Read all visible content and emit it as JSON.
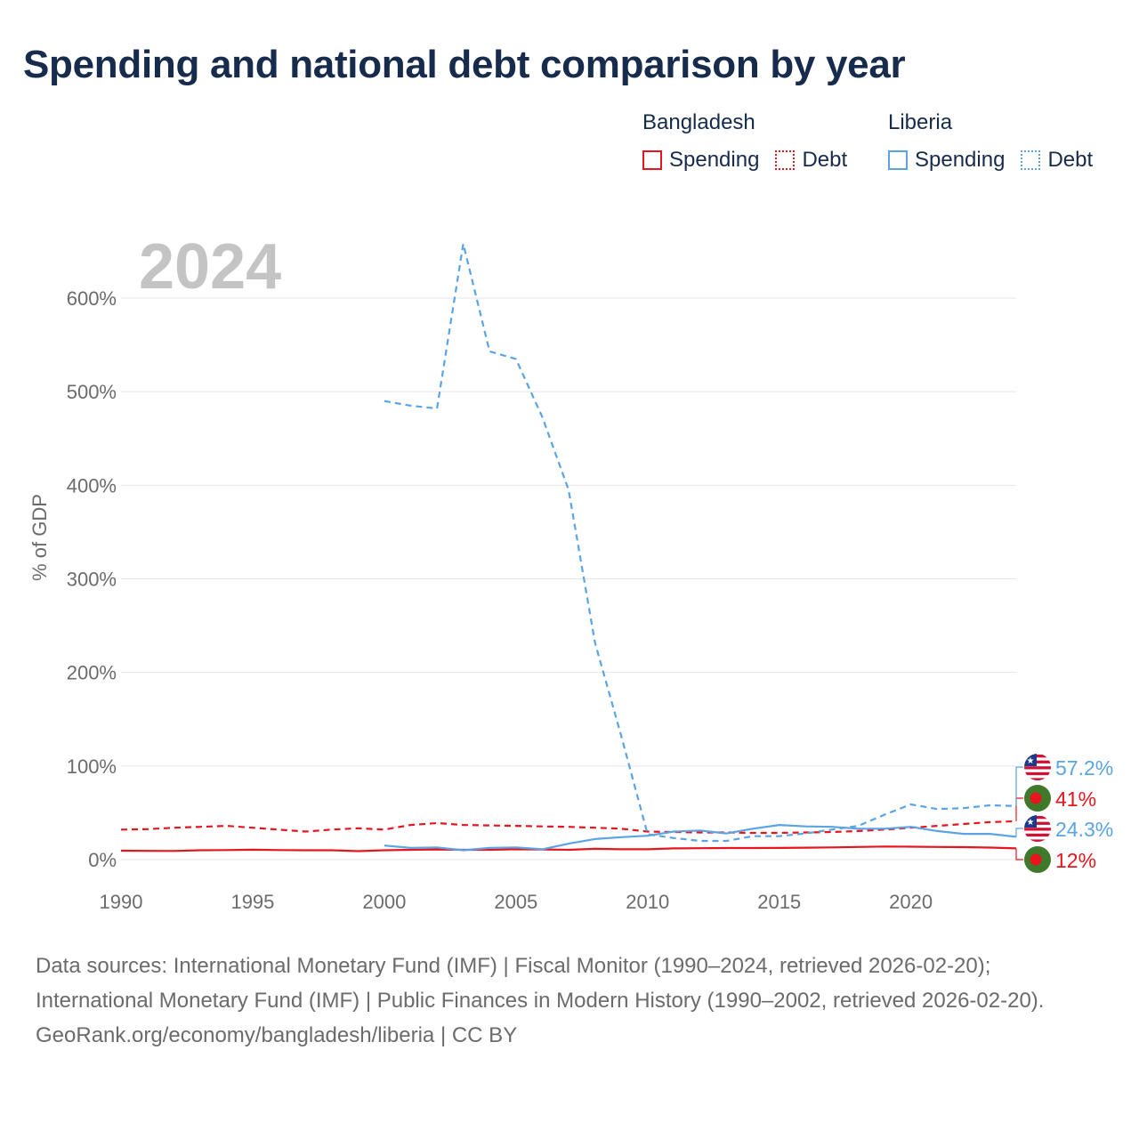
{
  "title": "Spending and national debt comparison by year",
  "legend": {
    "groups": [
      {
        "name": "Bangladesh",
        "spending_label": "Spending",
        "debt_label": "Debt"
      },
      {
        "name": "Liberia",
        "spending_label": "Spending",
        "debt_label": "Debt"
      }
    ]
  },
  "colors": {
    "bangladesh": "#e8141e",
    "liberia": "#5aa4e6",
    "year_watermark": "#c4c4c4",
    "grid": "#e6e6e6",
    "axis_text": "#6b6b6b"
  },
  "chart_data": {
    "type": "line",
    "title": "Spending and national debt comparison by year",
    "year_label": "2024",
    "ylabel": "% of GDP",
    "xlabel": "",
    "xlim": [
      1990,
      2024
    ],
    "ylim": [
      0,
      600
    ],
    "x_ticks": [
      1990,
      1995,
      2000,
      2005,
      2010,
      2015,
      2020
    ],
    "y_ticks": [
      0,
      100,
      200,
      300,
      400,
      500,
      600
    ],
    "y_tick_labels": [
      "0%",
      "100%",
      "200%",
      "300%",
      "400%",
      "500%",
      "600%"
    ],
    "series": [
      {
        "name": "Bangladesh Spending",
        "country": "Bangladesh",
        "metric": "Spending",
        "color": "#e8141e",
        "dash": false,
        "x": [
          1990,
          1991,
          1992,
          1993,
          1994,
          1995,
          1996,
          1997,
          1998,
          1999,
          2000,
          2001,
          2002,
          2003,
          2004,
          2005,
          2006,
          2007,
          2008,
          2009,
          2010,
          2011,
          2012,
          2013,
          2014,
          2015,
          2016,
          2017,
          2018,
          2019,
          2020,
          2021,
          2022,
          2023,
          2024
        ],
        "values": [
          9.5,
          9.3,
          9.2,
          10,
          10.2,
          10.6,
          10.2,
          10,
          10,
          9,
          10,
          10.5,
          10.8,
          10.5,
          10.5,
          11,
          10.8,
          10.5,
          11.5,
          11,
          11,
          12,
          12.2,
          12.4,
          12.4,
          12.5,
          12.7,
          13,
          13.5,
          14,
          13.8,
          13.5,
          13.3,
          12.8,
          12
        ],
        "end_label": "12%"
      },
      {
        "name": "Bangladesh Debt",
        "country": "Bangladesh",
        "metric": "Debt",
        "color": "#e8141e",
        "dash": true,
        "x": [
          1990,
          1991,
          1992,
          1993,
          1994,
          1995,
          1996,
          1997,
          1998,
          1999,
          2000,
          2001,
          2002,
          2003,
          2004,
          2005,
          2006,
          2007,
          2008,
          2009,
          2010,
          2011,
          2012,
          2013,
          2014,
          2015,
          2016,
          2017,
          2018,
          2019,
          2020,
          2021,
          2022,
          2023,
          2024
        ],
        "values": [
          32,
          32.5,
          34,
          35,
          36,
          34,
          32,
          30,
          32,
          33.5,
          32,
          37,
          39,
          37,
          36.5,
          36,
          35.5,
          35,
          34,
          33,
          30,
          29.5,
          29,
          29,
          28.5,
          28.5,
          29,
          29.5,
          30.5,
          32,
          34,
          36,
          38,
          40,
          41
        ],
        "end_label": "41%"
      },
      {
        "name": "Liberia Spending",
        "country": "Liberia",
        "metric": "Spending",
        "color": "#5aa4e6",
        "dash": false,
        "x": [
          2000,
          2001,
          2002,
          2003,
          2004,
          2005,
          2006,
          2007,
          2008,
          2009,
          2010,
          2011,
          2012,
          2013,
          2014,
          2015,
          2016,
          2017,
          2018,
          2019,
          2020,
          2021,
          2022,
          2023,
          2024
        ],
        "values": [
          15,
          12.5,
          13,
          10,
          12.5,
          13,
          11,
          17,
          22,
          24,
          25.5,
          30,
          31,
          28,
          33,
          37,
          35.5,
          35,
          33,
          33,
          35,
          30.5,
          27.5,
          27.5,
          24.3
        ],
        "end_label": "24.3%"
      },
      {
        "name": "Liberia Debt",
        "country": "Liberia",
        "metric": "Debt",
        "color": "#5aa4e6",
        "dash": true,
        "x": [
          2000,
          2001,
          2002,
          2003,
          2004,
          2005,
          2006,
          2007,
          2008,
          2009,
          2010,
          2011,
          2012,
          2013,
          2014,
          2015,
          2016,
          2017,
          2018,
          2019,
          2020,
          2021,
          2022,
          2023,
          2024
        ],
        "values": [
          490,
          485,
          482,
          658,
          543,
          535,
          473,
          395,
          232,
          132,
          27,
          23,
          20,
          20,
          25,
          25,
          28,
          32,
          36,
          48,
          59,
          54,
          55,
          58,
          57.2
        ],
        "end_label": "57.2%"
      }
    ]
  },
  "footer": {
    "sources": "Data sources: International Monetary Fund (IMF) | Fiscal Monitor (1990–2024, retrieved 2026-02-20); International Monetary Fund (IMF) | Public Finances in Modern History (1990–2002, retrieved 2026-02-20).",
    "url": "GeoRank.org/economy/bangladesh/liberia | CC BY"
  }
}
